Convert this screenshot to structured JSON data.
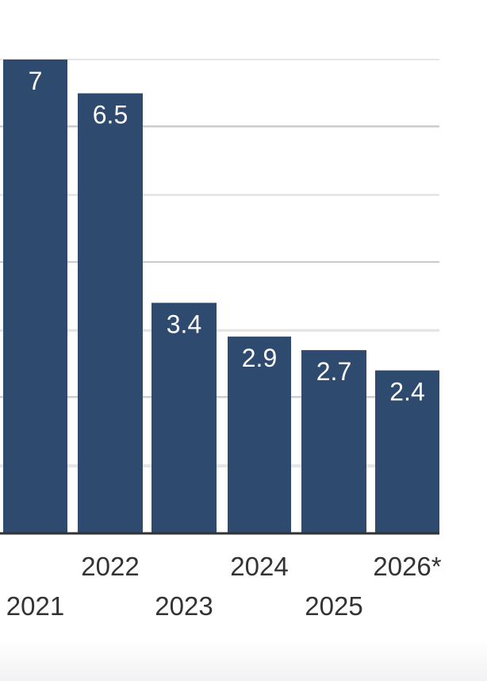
{
  "chart_data": {
    "type": "bar",
    "categories": [
      "2021",
      "2022",
      "2023",
      "2024",
      "2025",
      "2026*"
    ],
    "values": [
      7,
      6.5,
      3.4,
      2.9,
      2.7,
      2.4
    ],
    "data_labels": [
      "7",
      "6.5",
      "3.4",
      "2.9",
      "2.7",
      "2.4"
    ],
    "ylim": [
      0,
      7
    ],
    "grid": true,
    "colors": {
      "bar": "#2e4a6f",
      "label": "#ffffff",
      "grid_major": "#cccccc",
      "grid_minor": "#e5e5e5",
      "axis": "#333333",
      "tick_text": "#333333"
    }
  }
}
